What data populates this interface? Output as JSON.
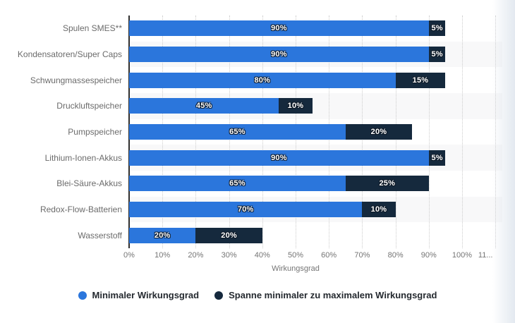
{
  "chart_data": {
    "type": "bar",
    "orientation": "horizontal",
    "stacked": true,
    "title": "",
    "xlabel": "Wirkungsgrad",
    "ylabel": "",
    "categories": [
      "Spulen SMES**",
      "Kondensatoren/Super Caps",
      "Schwungmassespeicher",
      "Druckluftspeicher",
      "Pumpspeicher",
      "Lithium-Ionen-Akkus",
      "Blei-Säure-Akkus",
      "Redox-Flow-Batterien",
      "Wasserstoff"
    ],
    "series": [
      {
        "name": "Minimaler Wirkungsgrad",
        "color": "#2b76dc",
        "values": [
          90,
          90,
          80,
          45,
          65,
          90,
          65,
          70,
          20
        ],
        "labels": [
          "90%",
          "90%",
          "80%",
          "45%",
          "65%",
          "90%",
          "65%",
          "70%",
          "20%"
        ]
      },
      {
        "name": "Spanne minimaler zu maximalem Wirkungsgrad",
        "color": "#15293d",
        "values": [
          5,
          5,
          15,
          10,
          20,
          5,
          25,
          10,
          20
        ],
        "labels": [
          "5%",
          "5%",
          "15%",
          "10%",
          "20%",
          "5%",
          "25%",
          "10%",
          "20%"
        ]
      }
    ],
    "x_ticks": [
      0,
      10,
      20,
      30,
      40,
      50,
      60,
      70,
      80,
      90,
      100,
      110
    ],
    "x_tick_labels": [
      "0%",
      "10%",
      "20%",
      "30%",
      "40%",
      "50%",
      "60%",
      "70%",
      "80%",
      "90%",
      "100%",
      "11..."
    ],
    "xlim": [
      0,
      116
    ],
    "grid": "dotted-vertical",
    "legend_position": "bottom"
  },
  "style": {
    "bar_color_min": "#2b76dc",
    "bar_color_span": "#15293d",
    "row_band_color": "#f8f8f9",
    "gridline_color": "#cccccc",
    "axis_line_color": "#2f2f2f",
    "category_label_color": "#6b6b6b",
    "tick_label_color": "#757575",
    "legend_text_color": "#24292f",
    "background_color": "#ffffff"
  }
}
